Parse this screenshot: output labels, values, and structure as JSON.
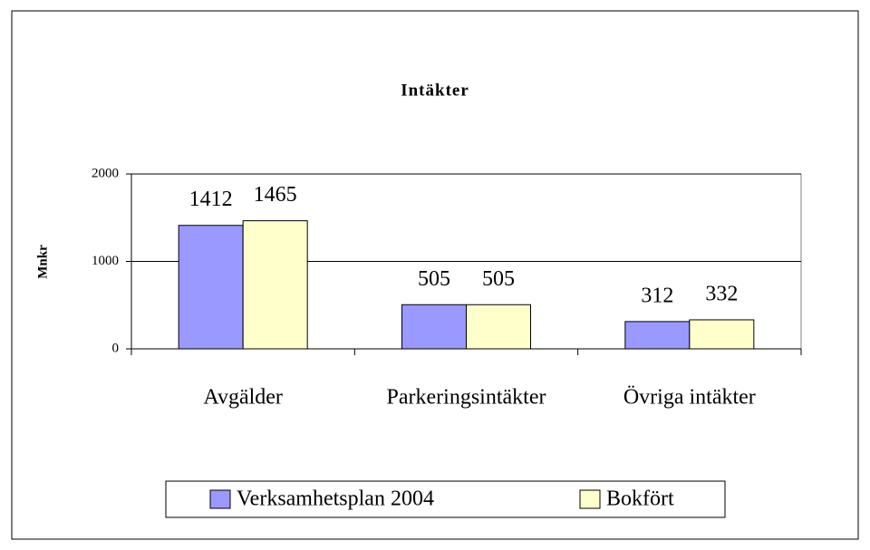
{
  "chart_data": {
    "type": "bar",
    "title": "Intäkter",
    "y_label": "Mnkr",
    "categories": [
      "Avgälder",
      "Parkeringsintäkter",
      "Övriga intäkter"
    ],
    "series": [
      {
        "name": "Verksamhetsplan 2004",
        "color": "#9999ff",
        "values": [
          1412,
          505,
          312
        ]
      },
      {
        "name": "Bokfört",
        "color": "#ffffcc",
        "values": [
          1465,
          505,
          332
        ]
      }
    ],
    "ylim": [
      0,
      2000
    ],
    "yticks": [
      0,
      1000,
      2000
    ],
    "grid": true
  }
}
